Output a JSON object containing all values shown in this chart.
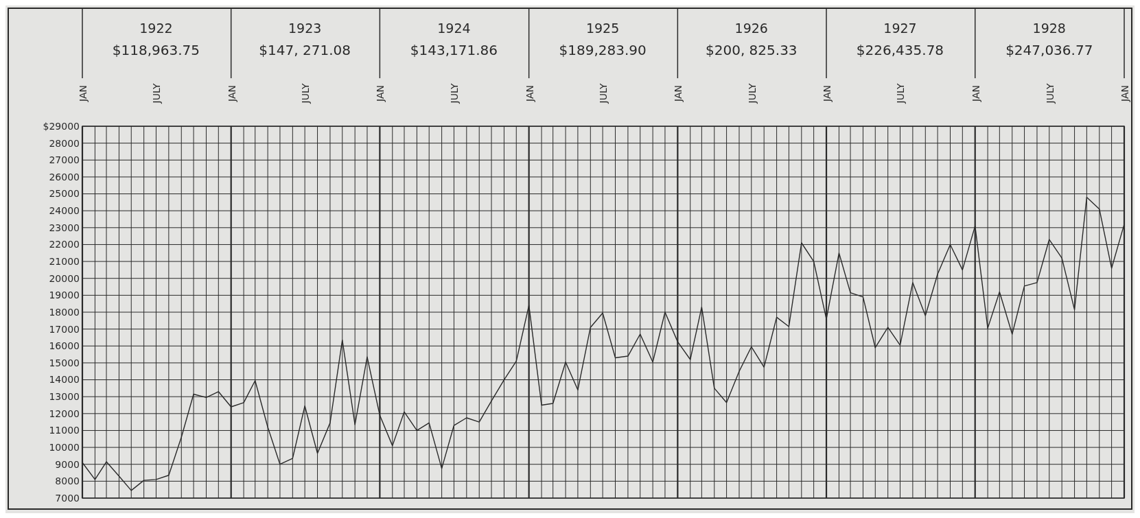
{
  "chart_data": {
    "type": "line",
    "x": [
      "1922-01",
      "1922-02",
      "1922-03",
      "1922-04",
      "1922-05",
      "1922-06",
      "1922-07",
      "1922-08",
      "1922-09",
      "1922-10",
      "1922-11",
      "1922-12",
      "1923-01",
      "1923-02",
      "1923-03",
      "1923-04",
      "1923-05",
      "1923-06",
      "1923-07",
      "1923-08",
      "1923-09",
      "1923-10",
      "1923-11",
      "1923-12",
      "1924-01",
      "1924-02",
      "1924-03",
      "1924-04",
      "1924-05",
      "1924-06",
      "1924-07",
      "1924-08",
      "1924-09",
      "1924-10",
      "1924-11",
      "1924-12",
      "1925-01",
      "1925-02",
      "1925-03",
      "1925-04",
      "1925-05",
      "1925-06",
      "1925-07",
      "1925-08",
      "1925-09",
      "1925-10",
      "1925-11",
      "1925-12",
      "1926-01",
      "1926-02",
      "1926-03",
      "1926-04",
      "1926-05",
      "1926-06",
      "1926-07",
      "1926-08",
      "1926-09",
      "1926-10",
      "1926-11",
      "1926-12",
      "1927-01",
      "1927-02",
      "1927-03",
      "1927-04",
      "1927-05",
      "1927-06",
      "1927-07",
      "1927-08",
      "1927-09",
      "1927-10",
      "1927-11",
      "1927-12",
      "1928-01",
      "1928-02",
      "1928-03",
      "1928-04",
      "1928-05",
      "1928-06",
      "1928-07",
      "1928-08",
      "1928-09",
      "1928-10",
      "1928-11",
      "1928-12",
      "1929-01"
    ],
    "series": [
      {
        "color": "#2a2a2a",
        "values": [
          9100,
          8100,
          9150,
          8300,
          7450,
          8050,
          8100,
          8350,
          10600,
          13150,
          12950,
          13300,
          12400,
          12650,
          13950,
          11200,
          9000,
          9350,
          12450,
          9650,
          11450,
          16350,
          11350,
          15350,
          11900,
          10100,
          12100,
          11000,
          11450,
          8750,
          11300,
          11750,
          11500,
          12750,
          14000,
          15100,
          18400,
          12500,
          12600,
          15050,
          13400,
          17100,
          17950,
          15300,
          15400,
          16700,
          15050,
          18000,
          16250,
          15200,
          18300,
          13500,
          12650,
          14500,
          15950,
          14750,
          17700,
          17150,
          22100,
          21000,
          17600,
          21500,
          19150,
          18900,
          15900,
          17100,
          16050,
          19750,
          17800,
          20250,
          22000,
          20500,
          23100,
          17050,
          19200,
          16700,
          19550,
          19750,
          22300,
          21200,
          18150,
          24800,
          24100,
          20600,
          23200
        ]
      }
    ],
    "xlim": [
      "1922-01",
      "1929-01"
    ],
    "xticks": [
      {
        "value": "1922-01",
        "label": "JAN"
      },
      {
        "value": "1922-07",
        "label": "JULY"
      },
      {
        "value": "1923-01",
        "label": "JAN"
      },
      {
        "value": "1923-07",
        "label": "JULY"
      },
      {
        "value": "1924-01",
        "label": "JAN"
      },
      {
        "value": "1924-07",
        "label": "JULY"
      },
      {
        "value": "1925-01",
        "label": "JAN"
      },
      {
        "value": "1925-07",
        "label": "JULY"
      },
      {
        "value": "1926-01",
        "label": "JAN"
      },
      {
        "value": "1926-07",
        "label": "JULY"
      },
      {
        "value": "1927-01",
        "label": "JAN"
      },
      {
        "value": "1927-07",
        "label": "JULY"
      },
      {
        "value": "1928-01",
        "label": "JAN"
      },
      {
        "value": "1928-07",
        "label": "JULY"
      },
      {
        "value": "1929-01",
        "label": "JAN"
      }
    ],
    "x2lim": [
      "1922-01",
      "1929-01"
    ],
    "x2ticks": [
      {
        "value": "1922-07",
        "label": "1922"
      },
      {
        "value": "1923-07",
        "label": "1923"
      },
      {
        "value": "1924-07",
        "label": "1924"
      },
      {
        "value": "1925-07",
        "label": "1925"
      },
      {
        "value": "1926-07",
        "label": "1926"
      },
      {
        "value": "1927-07",
        "label": "1927"
      },
      {
        "value": "1928-07",
        "label": "1928"
      }
    ],
    "annotations": [
      "$118,963.75",
      "$147, 271.08",
      "$143,171.86",
      "$189,283.90",
      "$200, 825.33",
      "$226,435.78",
      "$247,036.77"
    ],
    "ylim": [
      7000,
      29000
    ],
    "yticks": [
      7000,
      8000,
      9000,
      10000,
      11000,
      12000,
      13000,
      14000,
      15000,
      16000,
      17000,
      18000,
      19000,
      20000,
      21000,
      22000,
      23000,
      24000,
      25000,
      26000,
      27000,
      28000,
      {
        "value": 29000,
        "label": "$29000"
      }
    ],
    "grid": true,
    "line_style": "solid",
    "marker": "none"
  }
}
